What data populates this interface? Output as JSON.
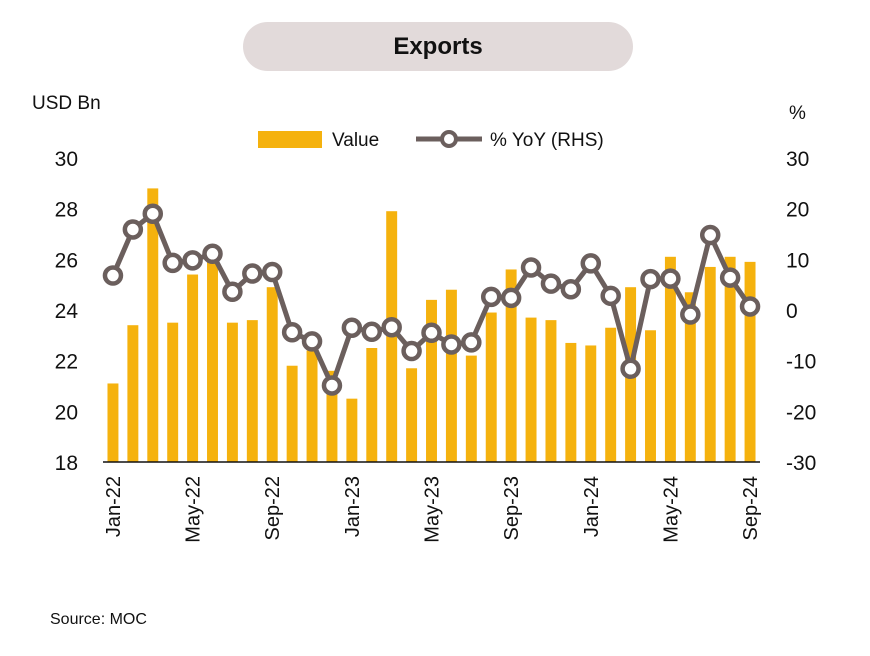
{
  "chart_data": {
    "type": "bar+line",
    "title": "Exports",
    "left_unit": "USD Bn",
    "right_unit": "%",
    "source": "Source: MOC",
    "categories": [
      "Jan-22",
      "Feb-22",
      "Mar-22",
      "Apr-22",
      "May-22",
      "Jun-22",
      "Jul-22",
      "Aug-22",
      "Sep-22",
      "Oct-22",
      "Nov-22",
      "Dec-22",
      "Jan-23",
      "Feb-23",
      "Mar-23",
      "Apr-23",
      "May-23",
      "Jun-23",
      "Jul-23",
      "Aug-23",
      "Sep-23",
      "Oct-23",
      "Nov-23",
      "Dec-23",
      "Jan-24",
      "Feb-24",
      "Mar-24",
      "Apr-24",
      "May-24",
      "Jun-24",
      "Jul-24",
      "Aug-24",
      "Sep-24"
    ],
    "x_tick_labels": [
      "Jan-22",
      "May-22",
      "Sep-22",
      "Jan-23",
      "May-23",
      "Sep-23",
      "Jan-24",
      "May-24",
      "Sep-24"
    ],
    "y_left": {
      "min": 18,
      "max": 30,
      "ticks": [
        18,
        20,
        22,
        24,
        26,
        28,
        30
      ]
    },
    "y_right": {
      "min": -30,
      "max": 30,
      "ticks": [
        30,
        20,
        10,
        0,
        -10,
        -20,
        -30
      ]
    },
    "legend_placement": "top-center",
    "grid": false,
    "series": [
      {
        "name": "Value",
        "kind": "bar",
        "axis": "left",
        "color": "#f5b20e",
        "values": [
          21.1,
          23.4,
          28.8,
          23.5,
          25.4,
          25.9,
          23.5,
          23.6,
          24.9,
          21.8,
          22.4,
          21.6,
          20.5,
          22.5,
          27.9,
          21.7,
          24.4,
          24.8,
          22.2,
          23.9,
          25.6,
          23.7,
          23.6,
          22.7,
          22.6,
          23.3,
          24.9,
          23.2,
          26.1,
          24.7,
          25.7,
          26.1,
          25.9
        ]
      },
      {
        "name": "% YoY (RHS)",
        "kind": "line",
        "axis": "right",
        "color": "#6b5f5d",
        "values": [
          6.8,
          15.9,
          19.0,
          9.3,
          9.8,
          11.1,
          3.6,
          7.2,
          7.5,
          -4.4,
          -6.2,
          -14.9,
          -3.5,
          -4.3,
          -3.4,
          -8.1,
          -4.5,
          -6.8,
          -6.4,
          2.6,
          2.4,
          8.4,
          5.2,
          4.1,
          9.2,
          2.8,
          -11.6,
          6.1,
          6.2,
          -0.9,
          14.8,
          6.4,
          0.7
        ]
      }
    ]
  }
}
